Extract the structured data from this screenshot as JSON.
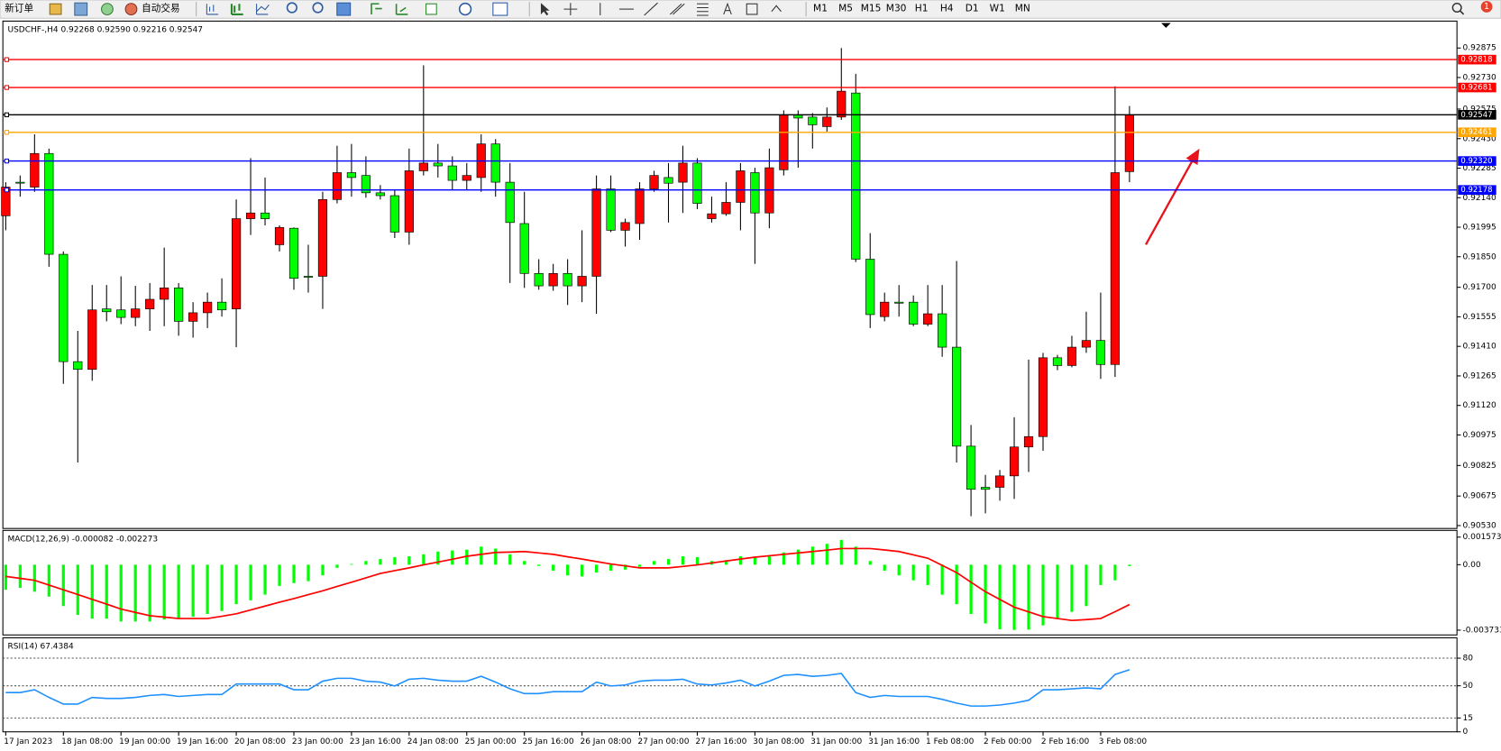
{
  "toolbar": {
    "new_order": "新订单",
    "auto_trade": "自动交易",
    "timeframes": [
      "M1",
      "M5",
      "M15",
      "M30",
      "H1",
      "H4",
      "D1",
      "W1",
      "MN"
    ],
    "notifications": 1
  },
  "chart_data": [
    {
      "type": "candlestick",
      "title": "USDCHF-,H4  0.92268 0.92590 0.92216 0.92547",
      "categories": [
        "17 Jan 2023",
        null,
        null,
        null,
        "18 Jan 08:00",
        null,
        null,
        null,
        "19 Jan 00:00",
        null,
        null,
        null,
        "19 Jan 16:00",
        null,
        null,
        null,
        "20 Jan 08:00",
        null,
        null,
        null,
        "23 Jan 00:00",
        null,
        null,
        null,
        "23 Jan 16:00",
        null,
        null,
        null,
        "24 Jan 08:00",
        null,
        null,
        null,
        "25 Jan 00:00",
        null,
        null,
        null,
        "25 Jan 16:00",
        null,
        null,
        null,
        "26 Jan 08:00",
        null,
        null,
        null,
        "27 Jan 00:00",
        null,
        null,
        null,
        "27 Jan 16:00",
        null,
        null,
        null,
        "30 Jan 08:00",
        null,
        null,
        null,
        "31 Jan 00:00",
        null,
        null,
        null,
        "31 Jan 16:00",
        null,
        null,
        null,
        "1 Feb 08:00",
        null,
        null,
        null,
        "2 Feb 00:00",
        null,
        null,
        null,
        "2 Feb 16:00",
        null,
        null,
        null,
        "3 Feb 08:00",
        null,
        null
      ],
      "open": [
        0.92051,
        0.92216,
        0.92192,
        0.92357,
        0.91862,
        0.91335,
        0.91297,
        0.91594,
        0.91589,
        0.91552,
        0.91594,
        0.91641,
        0.91697,
        0.91533,
        0.91575,
        0.91627,
        0.91594,
        0.92037,
        0.92065,
        0.91909,
        0.9199,
        0.91754,
        0.91754,
        0.92131,
        0.92263,
        0.92249,
        0.92164,
        0.9215,
        0.91971,
        0.92272,
        0.9231,
        0.92296,
        0.92225,
        0.92239,
        0.92404,
        0.92216,
        0.92013,
        0.91768,
        0.91707,
        0.91768,
        0.91707,
        0.91754,
        0.92183,
        0.9198,
        0.92013,
        0.92183,
        0.92239,
        0.92216,
        0.9231,
        0.92037,
        0.92061,
        0.92117,
        0.92263,
        0.92065,
        0.92277,
        0.92545,
        0.92536,
        0.92489,
        0.92536,
        0.92654,
        0.91838,
        0.91556,
        0.91627,
        0.91627,
        0.91519,
        0.9157,
        0.91406,
        0.9092,
        0.90718,
        0.90718,
        0.90774,
        0.90916,
        0.90967,
        0.91354,
        0.91316,
        0.91406,
        0.91439,
        0.91321,
        0.92268
      ],
      "high": [
        0.92216,
        0.92249,
        0.92451,
        0.92381,
        0.91876,
        0.91486,
        0.91711,
        0.91711,
        0.91754,
        0.91707,
        0.91721,
        0.91895,
        0.91721,
        0.91627,
        0.91674,
        0.91744,
        0.92131,
        0.92334,
        0.92239,
        0.92004,
        0.91994,
        0.91909,
        0.92169,
        0.92395,
        0.92404,
        0.92343,
        0.92202,
        0.92178,
        0.92381,
        0.9279,
        0.92404,
        0.92343,
        0.9231,
        0.92451,
        0.92428,
        0.9231,
        0.92169,
        0.91838,
        0.91815,
        0.91838,
        0.9198,
        0.92249,
        0.92249,
        0.92037,
        0.92216,
        0.92272,
        0.9231,
        0.92395,
        0.92334,
        0.92145,
        0.92216,
        0.9231,
        0.92287,
        0.92381,
        0.92569,
        0.92569,
        0.92555,
        0.92583,
        0.92875,
        0.92748,
        0.91966,
        0.91674,
        0.91711,
        0.9166,
        0.91711,
        0.91711,
        0.91829,
        0.91024,
        0.90779,
        0.90803,
        0.91062,
        0.91345,
        0.91378,
        0.91368,
        0.91462,
        0.9158,
        0.91674,
        0.92687,
        0.9259
      ],
      "low": [
        0.9198,
        0.92145,
        0.92169,
        0.91801,
        0.91226,
        0.9084,
        0.91241,
        0.91533,
        0.91519,
        0.91509,
        0.91486,
        0.91509,
        0.91462,
        0.91453,
        0.915,
        0.91556,
        0.91406,
        0.91957,
        0.92004,
        0.91876,
        0.91688,
        0.91674,
        0.91594,
        0.92112,
        0.92145,
        0.9214,
        0.92131,
        0.91942,
        0.91909,
        0.92249,
        0.92239,
        0.92178,
        0.92178,
        0.92169,
        0.92145,
        0.91721,
        0.91697,
        0.91688,
        0.91683,
        0.91613,
        0.91627,
        0.9157,
        0.91971,
        0.919,
        0.91933,
        0.92169,
        0.92018,
        0.92065,
        0.92084,
        0.92018,
        0.92051,
        0.9198,
        0.91815,
        0.9199,
        0.92249,
        0.92287,
        0.92381,
        0.92465,
        0.92522,
        0.91824,
        0.915,
        0.91533,
        0.91556,
        0.91509,
        0.91509,
        0.91359,
        0.9084,
        0.90576,
        0.9059,
        0.90652,
        0.90661,
        0.90793,
        0.90897,
        0.91293,
        0.91307,
        0.91378,
        0.9125,
        0.9126,
        0.92216
      ],
      "close": [
        0.92192,
        0.92216,
        0.92357,
        0.91862,
        0.91335,
        0.91297,
        0.91589,
        0.9158,
        0.91552,
        0.91594,
        0.91641,
        0.91697,
        0.91533,
        0.91575,
        0.91627,
        0.91589,
        0.92037,
        0.92065,
        0.92037,
        0.91994,
        0.91744,
        0.91754,
        0.92131,
        0.92263,
        0.92239,
        0.92164,
        0.9215,
        0.91971,
        0.92272,
        0.9231,
        0.92296,
        0.92225,
        0.92249,
        0.92404,
        0.92216,
        0.92018,
        0.91768,
        0.91707,
        0.91768,
        0.91707,
        0.91754,
        0.92183,
        0.9198,
        0.92018,
        0.92183,
        0.92249,
        0.92211,
        0.9231,
        0.92112,
        0.92061,
        0.92117,
        0.92272,
        0.92065,
        0.92287,
        0.92545,
        0.92531,
        0.92498,
        0.92536,
        0.92663,
        0.91838,
        0.91566,
        0.91627,
        0.91622,
        0.91519,
        0.9157,
        0.91406,
        0.9092,
        0.90708,
        0.90708,
        0.90774,
        0.90916,
        0.90967,
        0.91354,
        0.91316,
        0.91406,
        0.91439,
        0.91321,
        0.92263,
        0.92547
      ],
      "up_color": "#ff0000",
      "down_color": "#00ff00",
      "ylim": [
        0.9052,
        0.93
      ],
      "yticks": [
        0.92875,
        {
          "value": 0.9273,
          "label": "0.92730"
        },
        0.92575,
        {
          "value": 0.9243,
          "label": "0.92430"
        },
        0.92285,
        {
          "value": 0.9214,
          "label": "0.92140"
        },
        0.91995,
        {
          "value": 0.9185,
          "label": "0.91850"
        },
        {
          "value": 0.917,
          "label": "0.91700"
        },
        0.91555,
        {
          "value": 0.9141,
          "label": "0.91410"
        },
        0.91265,
        {
          "value": 0.9112,
          "label": "0.91120"
        },
        0.90975,
        0.90825,
        0.90675,
        {
          "value": 0.9053,
          "label": "0.90530"
        }
      ],
      "hlines": [
        {
          "value": 0.92818,
          "color": "#ff0000"
        },
        {
          "value": 0.92681,
          "color": "#ff0000"
        },
        {
          "value": 0.92547,
          "color": "#000000"
        },
        {
          "value": 0.92461,
          "color": "#ffa500"
        },
        {
          "value": 0.9232,
          "label": "0.92320",
          "color": "#0000ff"
        },
        {
          "value": 0.92178,
          "color": "#0000ff"
        }
      ]
    },
    {
      "type": "macd",
      "title": "MACD(12,26,9) -0.000082 -0.002273",
      "histogram_color": "#00ff00",
      "histogram_values": [
        -0.00143,
        -0.00132,
        -0.00154,
        -0.00182,
        -0.00236,
        -0.00286,
        -0.00308,
        -0.00308,
        -0.00324,
        -0.00324,
        -0.00324,
        -0.00313,
        -0.00308,
        -0.00297,
        -0.00281,
        -0.00264,
        -0.00225,
        -0.00203,
        -0.00171,
        -0.00121,
        -0.00105,
        -0.00094,
        -0.00061,
        -0.00018,
        4e-05,
        0.00021,
        0.00032,
        0.00043,
        0.00048,
        0.00059,
        0.00075,
        0.00081,
        0.00086,
        0.00103,
        0.00092,
        0.00059,
        0.00021,
        -7e-05,
        -0.00034,
        -0.00061,
        -0.00067,
        -0.00045,
        -0.00034,
        -0.00028,
        -0.00012,
        0.00021,
        0.00032,
        0.00048,
        0.00043,
        0.00021,
        0.00026,
        0.00048,
        0.00043,
        0.00054,
        0.0007,
        0.00086,
        0.00103,
        0.00119,
        0.00141,
        0.00103,
        0.00021,
        -0.00034,
        -0.00061,
        -0.00089,
        -0.00116,
        -0.00171,
        -0.00225,
        -0.00281,
        -0.00335,
        -0.00368,
        -0.00372,
        -0.0037,
        -0.00346,
        -0.00308,
        -0.00269,
        -0.00236,
        -0.00116,
        -0.00089,
        -8.2e-05
      ],
      "signal_color": "#ff0000",
      "signal_values": [
        -0.00067,
        -0.00078,
        -0.00089,
        -0.00116,
        -0.00143,
        -0.0017,
        -0.00198,
        -0.00225,
        -0.00253,
        -0.00272,
        -0.00291,
        -0.00299,
        -0.00307,
        -0.00307,
        -0.00307,
        -0.00294,
        -0.0028,
        -0.00258,
        -0.00236,
        -0.00214,
        -0.00193,
        -0.00171,
        -0.00149,
        -0.00124,
        -0.001,
        -0.00075,
        -0.0005,
        -0.00034,
        -0.00018,
        -1e-05,
        0.00015,
        0.00031,
        0.00048,
        0.00059,
        0.0007,
        0.00072,
        0.00075,
        0.00067,
        0.00059,
        0.00045,
        0.00032,
        0.00018,
        4e-05,
        -7e-05,
        -0.00018,
        -0.00018,
        -0.00018,
        -0.0001,
        -1e-05,
        0.0001,
        0.00021,
        0.00032,
        0.00043,
        0.00051,
        0.00059,
        0.00067,
        0.00075,
        0.00083,
        0.00092,
        0.00092,
        0.00092,
        0.00084,
        0.00075,
        0.00056,
        0.00037,
        -4e-05,
        -0.00045,
        -0.001,
        -0.00154,
        -0.00198,
        -0.00242,
        -0.00269,
        -0.00296,
        -0.00307,
        -0.00318,
        -0.00313,
        -0.00307,
        -0.00268,
        -0.002273
      ],
      "ylim": [
        -0.003733,
        0.001573
      ],
      "yticks": [
        0.001573,
        {
          "value": 0,
          "label": "0.00"
        },
        -0.003733
      ]
    },
    {
      "type": "line",
      "title": "RSI(14) 67.4384",
      "color": "#1e90ff",
      "values": [
        42.6,
        42.6,
        45.7,
        37.4,
        30.1,
        30.1,
        37.4,
        36.3,
        36.3,
        37.4,
        39.5,
        40.5,
        38.4,
        39.5,
        40.5,
        40.5,
        51.9,
        51.9,
        51.9,
        51.9,
        45.7,
        45.7,
        55.0,
        58.1,
        58.1,
        55.0,
        54.0,
        49.8,
        57.1,
        58.1,
        56.1,
        55.0,
        55.0,
        60.3,
        54.0,
        46.7,
        41.5,
        41.5,
        43.6,
        43.6,
        43.6,
        54.0,
        49.8,
        50.9,
        55.0,
        56.1,
        56.1,
        57.1,
        51.9,
        50.9,
        53.0,
        56.1,
        49.8,
        55.0,
        61.3,
        62.3,
        60.3,
        61.3,
        63.4,
        42.6,
        37.4,
        39.5,
        38.4,
        38.4,
        38.4,
        35.3,
        31.2,
        28.0,
        28.0,
        29.1,
        31.2,
        34.3,
        45.7,
        45.7,
        46.7,
        47.8,
        46.7,
        62.3,
        67.4384
      ],
      "ylim": [
        0,
        100
      ],
      "yticks": [
        80,
        50,
        15,
        0
      ],
      "levels": [
        80,
        50,
        15
      ]
    }
  ]
}
